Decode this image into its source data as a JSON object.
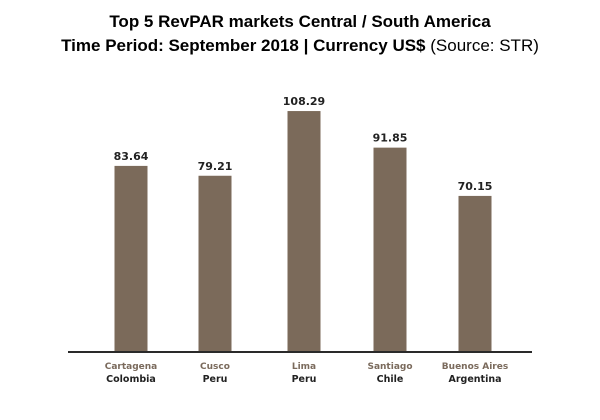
{
  "chart_data": {
    "type": "bar",
    "title": "Top 5 RevPAR markets Central / South America",
    "subtitle_bold": "Time Period: September 2018 | Currency US$",
    "subtitle_source": "(Source: STR)",
    "categories": [
      {
        "city": "Cartagena",
        "country": "Colombia"
      },
      {
        "city": "Cusco",
        "country": "Peru"
      },
      {
        "city": "Lima",
        "country": "Peru"
      },
      {
        "city": "Santiago",
        "country": "Chile"
      },
      {
        "city": "Buenos Aires",
        "country": "Argentina"
      }
    ],
    "values": [
      83.64,
      79.21,
      108.29,
      91.85,
      70.15
    ],
    "value_labels": [
      "83.64",
      "79.21",
      "108.29",
      "91.85",
      "70.15"
    ],
    "ylim": [
      0,
      120
    ],
    "grid": false,
    "colors": {
      "bar": "#7b6a5a",
      "axis": "#2a2a2a",
      "city_label": "#7a6a5c",
      "country_label": "#222222",
      "value_label": "#222222"
    }
  }
}
